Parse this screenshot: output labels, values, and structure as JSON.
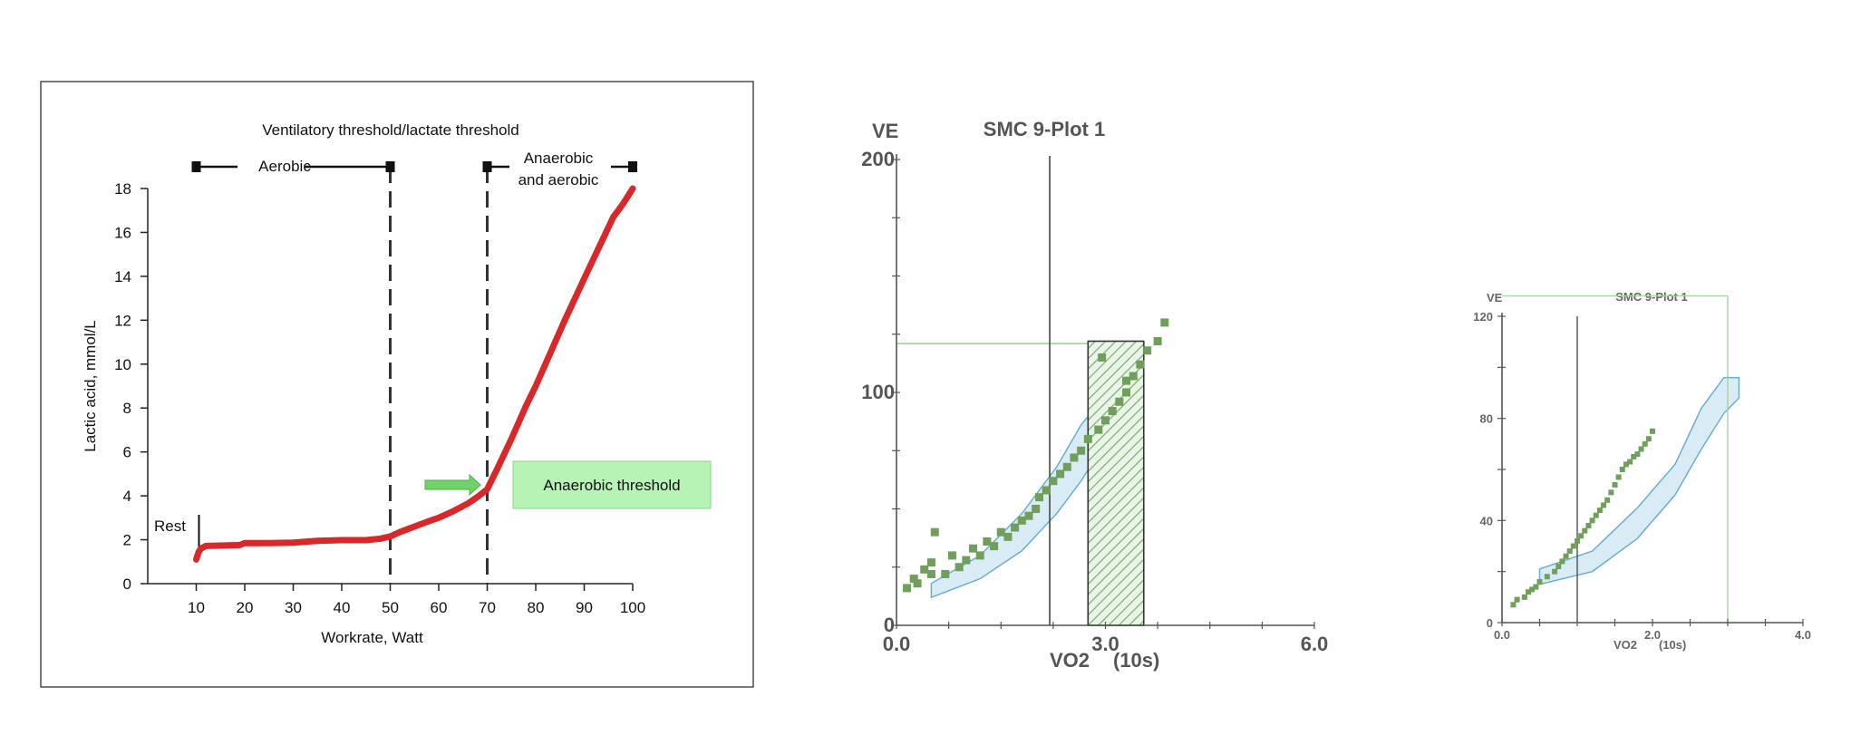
{
  "colors": {
    "lactate_curve": "#d8282a",
    "threshold_box": "#b6f3b4",
    "threshold_arrow": "#6fd36a",
    "data_points": "#6f9f5a",
    "normal_band_fill": "#d9ecf5",
    "normal_band_stroke": "#6aaed0",
    "reference_line": "#9ed49a"
  },
  "chart_data": [
    {
      "type": "line",
      "title": "Ventilatory threshold/lactate threshold",
      "xlabel": "Workrate, Watt",
      "ylabel": "Lactic acid, mmol/L",
      "xlim": [
        0,
        100
      ],
      "ylim": [
        0,
        18
      ],
      "xticks": [
        10,
        20,
        30,
        40,
        50,
        60,
        70,
        80,
        90,
        100
      ],
      "yticks": [
        0,
        2,
        4,
        6,
        8,
        10,
        12,
        14,
        16,
        18
      ],
      "grid": false,
      "series": [
        {
          "name": "Lactic acid",
          "x": [
            10,
            10.5,
            11,
            12,
            14,
            16,
            19,
            20,
            25,
            30,
            35,
            40,
            45,
            48,
            50,
            52,
            55,
            58,
            60,
            63,
            66,
            68,
            70,
            72,
            75,
            78,
            80,
            83,
            86,
            90,
            93,
            96,
            98,
            100
          ],
          "y": [
            1.1,
            1.45,
            1.6,
            1.72,
            1.73,
            1.74,
            1.76,
            1.85,
            1.85,
            1.87,
            1.95,
            1.98,
            1.98,
            2.05,
            2.15,
            2.35,
            2.6,
            2.85,
            3.0,
            3.3,
            3.65,
            3.95,
            4.3,
            5.2,
            6.6,
            8.1,
            9.0,
            10.5,
            12.0,
            13.9,
            15.3,
            16.7,
            17.3,
            18.0
          ]
        }
      ],
      "annotations": {
        "vertical_lines_x": [
          10,
          50,
          70
        ],
        "rest_label": "Rest",
        "aerobic_label": "Aerobic",
        "anaerobic_label_line1": "Anaerobic",
        "anaerobic_label_line2": "and aerobic",
        "threshold_box_label": "Anaerobic threshold",
        "threshold_arrow_at": {
          "x": 70,
          "y": 4.3
        }
      }
    },
    {
      "type": "scatter",
      "title": "SMC 9-Plot 1",
      "ylabel": "VE",
      "xlabel": "VO2",
      "xlabel_suffix": "(10s)",
      "xlim": [
        0,
        6
      ],
      "ylim": [
        0,
        200
      ],
      "xticks": [
        "0.0",
        "3.0",
        "6.0"
      ],
      "yticks": [
        "0",
        "100",
        "200"
      ],
      "vertical_line_x": 2.2,
      "horizontal_line_y": 121,
      "hatched_region": {
        "x": [
          2.75,
          3.55
        ],
        "y": [
          0,
          122
        ]
      },
      "normal_band": {
        "upper": [
          [
            0.5,
            18
          ],
          [
            1.2,
            30
          ],
          [
            1.8,
            48
          ],
          [
            2.3,
            68
          ],
          [
            2.65,
            86
          ],
          [
            2.95,
            97
          ],
          [
            3.15,
            97
          ]
        ],
        "lower": [
          [
            0.5,
            12
          ],
          [
            1.2,
            20
          ],
          [
            1.8,
            32
          ],
          [
            2.3,
            48
          ],
          [
            2.65,
            62
          ],
          [
            2.95,
            76
          ],
          [
            3.15,
            86
          ]
        ]
      },
      "series": [
        {
          "name": "VE",
          "x": [
            0.15,
            0.25,
            0.3,
            0.4,
            0.5,
            0.55,
            0.7,
            0.8,
            0.9,
            1.0,
            1.1,
            1.2,
            1.3,
            1.4,
            1.5,
            1.6,
            1.7,
            1.8,
            1.9,
            2.0,
            2.05,
            2.15,
            2.25,
            2.35,
            2.45,
            2.55,
            2.65,
            2.75,
            2.9,
            3.0,
            3.1,
            3.2,
            3.3,
            3.4,
            3.5,
            3.6,
            3.75,
            3.85,
            2.95,
            3.3,
            0.5
          ],
          "y": [
            16,
            20,
            18,
            24,
            27,
            40,
            22,
            30,
            25,
            28,
            33,
            30,
            36,
            34,
            40,
            38,
            42,
            45,
            47,
            50,
            55,
            58,
            62,
            65,
            68,
            72,
            75,
            80,
            84,
            88,
            92,
            96,
            100,
            107,
            112,
            118,
            122,
            130,
            115,
            105,
            22
          ]
        }
      ]
    },
    {
      "type": "scatter",
      "title": "SMC 9-Plot 1",
      "ylabel": "VE",
      "xlabel": "VO2",
      "xlabel_suffix": "(10s)",
      "xlim": [
        0,
        4
      ],
      "ylim": [
        0,
        120
      ],
      "xticks": [
        "0.0",
        "2.0",
        "4.0"
      ],
      "yticks": [
        "0",
        "40",
        "80",
        "120"
      ],
      "vertical_line_x": 1.0,
      "horizontal_line_y": 128,
      "right_line_x": 3.0,
      "normal_band": {
        "upper": [
          [
            0.5,
            21
          ],
          [
            1.2,
            28
          ],
          [
            1.8,
            45
          ],
          [
            2.3,
            62
          ],
          [
            2.65,
            84
          ],
          [
            2.95,
            96
          ],
          [
            3.15,
            96
          ]
        ],
        "lower": [
          [
            0.5,
            15
          ],
          [
            1.2,
            20
          ],
          [
            1.8,
            33
          ],
          [
            2.3,
            50
          ],
          [
            2.65,
            68
          ],
          [
            2.95,
            82
          ],
          [
            3.15,
            88
          ]
        ]
      },
      "series": [
        {
          "name": "VE",
          "x": [
            0.15,
            0.2,
            0.3,
            0.35,
            0.4,
            0.45,
            0.5,
            0.6,
            0.7,
            0.75,
            0.8,
            0.85,
            0.9,
            0.95,
            1.0,
            1.05,
            1.1,
            1.15,
            1.2,
            1.25,
            1.3,
            1.35,
            1.4,
            1.45,
            1.5,
            1.55,
            1.6,
            1.65,
            1.7,
            1.75,
            1.8,
            1.85,
            1.9,
            1.95,
            2.0
          ],
          "y": [
            7,
            9,
            10,
            12,
            13,
            14,
            16,
            18,
            20,
            22,
            24,
            26,
            28,
            30,
            32,
            34,
            36,
            38,
            40,
            42,
            44,
            46,
            48,
            51,
            54,
            57,
            60,
            62,
            63,
            65,
            66,
            68,
            70,
            72,
            75
          ]
        }
      ]
    }
  ]
}
